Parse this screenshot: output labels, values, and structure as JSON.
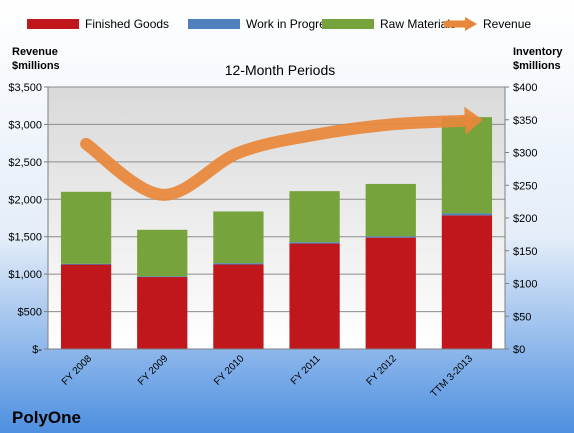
{
  "chart_data": {
    "type": "bar",
    "title": "12-Month Periods",
    "company": "PolyOne",
    "categories": [
      "FY 2008",
      "FY 2009",
      "FY 2010",
      "FY 2011",
      "FY 2012",
      "TTM 3-2013"
    ],
    "series": [
      {
        "name": "Finished Goods",
        "color": "#c0171c",
        "axis": "inventory",
        "values": [
          129,
          110,
          129,
          161,
          170,
          204
        ]
      },
      {
        "name": "Work in Progress",
        "color": "#4f81bd",
        "axis": "inventory",
        "values": [
          1,
          1,
          2,
          2,
          2,
          3
        ]
      },
      {
        "name": "Raw Materials",
        "color": "#77a33d",
        "axis": "inventory",
        "values": [
          110,
          71,
          79,
          78,
          80,
          147
        ]
      },
      {
        "name": "Revenue",
        "color": "#e8873a",
        "axis": "revenue",
        "type": "line",
        "values": [
          2740,
          2060,
          2620,
          2860,
          3000,
          3050
        ]
      }
    ],
    "left_axis": {
      "label": "Revenue $millions",
      "label_lines": [
        "Revenue",
        "$millions"
      ],
      "ylim": [
        0,
        3500
      ],
      "ticks": [
        0,
        500,
        1000,
        1500,
        2000,
        2500,
        3000,
        3500
      ],
      "tick_labels": [
        "$-",
        "$500",
        "$1,000",
        "$1,500",
        "$2,000",
        "$2,500",
        "$3,000",
        "$3,500"
      ]
    },
    "right_axis": {
      "label": "Inventory $millions",
      "label_lines": [
        "Inventory",
        "$millions"
      ],
      "ylim": [
        0,
        400
      ],
      "ticks": [
        0,
        50,
        100,
        150,
        200,
        250,
        300,
        350,
        400
      ],
      "tick_labels": [
        "$0",
        "$50",
        "$100",
        "$150",
        "$200",
        "$250",
        "$300",
        "$350",
        "$400"
      ]
    },
    "grid": true,
    "legend_position": "top"
  }
}
